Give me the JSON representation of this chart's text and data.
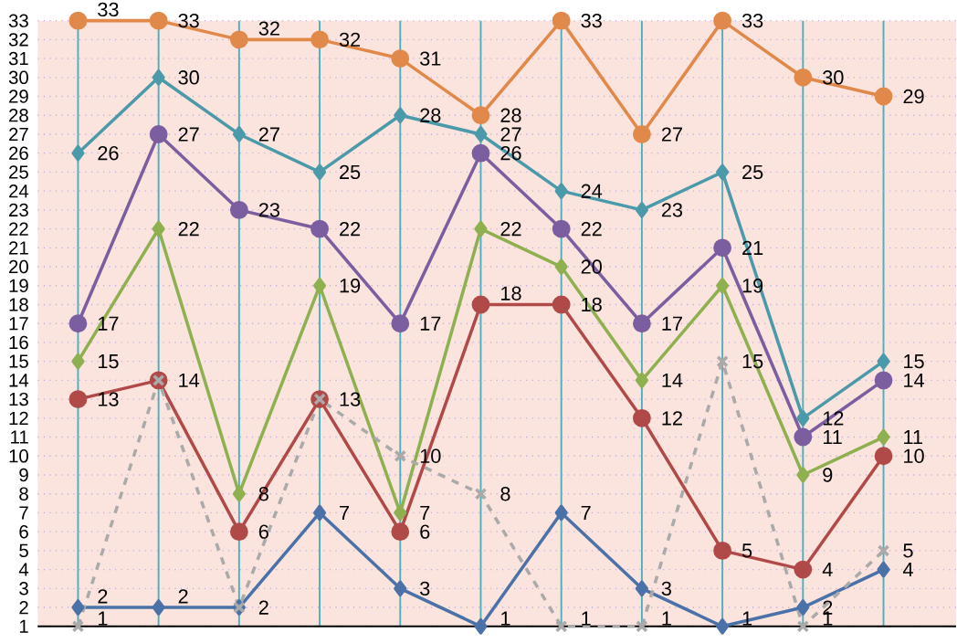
{
  "chart_data": {
    "type": "line",
    "categories": [
      null,
      null,
      null,
      null,
      null,
      null,
      null,
      null,
      null,
      null,
      null
    ],
    "series": [
      {
        "color": "#e0894a",
        "marker": "circle",
        "line_style": "solid",
        "values": [
          33,
          33,
          32,
          32,
          31,
          28,
          33,
          27,
          33,
          30,
          29
        ]
      },
      {
        "color": "#4a9aaa",
        "marker": "diamond",
        "line_style": "solid",
        "values": [
          26,
          30,
          27,
          25,
          28,
          27,
          24,
          23,
          25,
          12,
          15
        ]
      },
      {
        "color": "#7b5ea0",
        "marker": "circle",
        "line_style": "solid",
        "values": [
          17,
          27,
          23,
          22,
          17,
          26,
          22,
          17,
          21,
          11,
          14
        ]
      },
      {
        "color": "#8fb050",
        "marker": "diamond",
        "line_style": "solid",
        "values": [
          15,
          22,
          8,
          19,
          7,
          22,
          20,
          14,
          19,
          9,
          11
        ]
      },
      {
        "color": "#b04a48",
        "marker": "circle",
        "line_style": "solid",
        "values": [
          13,
          14,
          6,
          13,
          6,
          18,
          18,
          12,
          5,
          4,
          10
        ]
      },
      {
        "color": "#4a72a8",
        "marker": "diamond",
        "line_style": "solid",
        "values": [
          2,
          2,
          2,
          7,
          3,
          1,
          7,
          3,
          1,
          2,
          4
        ]
      },
      {
        "color": "#aaaaaa",
        "marker": "cross",
        "line_style": "dashed",
        "values": [
          1,
          14,
          2,
          13,
          10,
          8,
          1,
          1,
          15,
          1,
          5
        ],
        "value_labels": [
          "1",
          null,
          null,
          null,
          "10",
          "8",
          "1",
          "1",
          "15",
          "1",
          "5"
        ]
      }
    ],
    "ylim": [
      1,
      33
    ],
    "yticks": [
      1,
      2,
      3,
      4,
      5,
      6,
      7,
      8,
      9,
      10,
      11,
      12,
      13,
      14,
      15,
      16,
      17,
      18,
      19,
      20,
      21,
      22,
      23,
      24,
      25,
      26,
      27,
      28,
      29,
      30,
      31,
      32,
      33
    ],
    "grid": true,
    "data_labels": true,
    "tick_labels": "y"
  }
}
